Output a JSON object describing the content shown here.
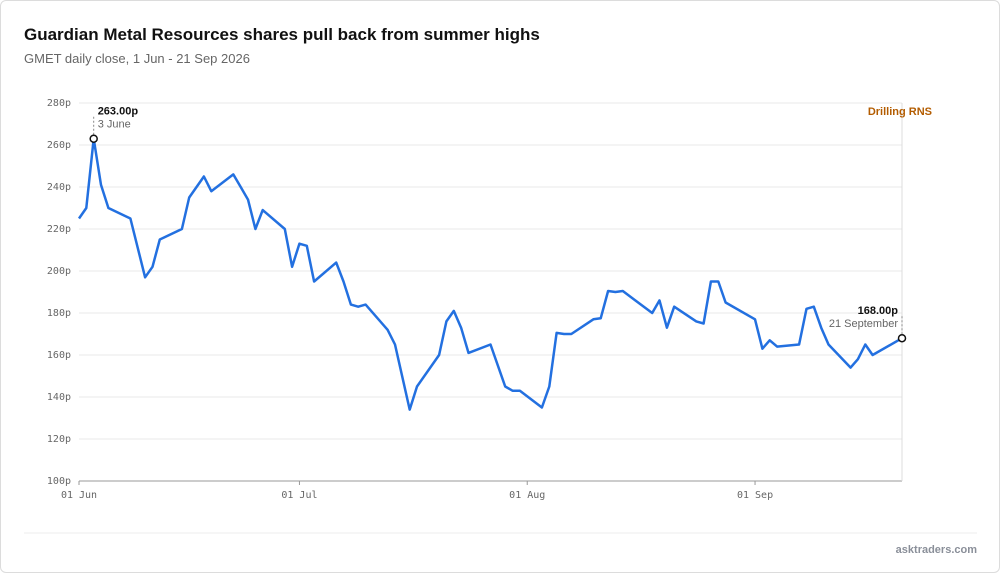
{
  "chart_data": {
    "type": "line",
    "title": "Guardian Metal Resources shares pull back from summer highs",
    "subtitle": "GMET daily close, 1 Jun - 21 Sep 2026",
    "x": [
      "2026-06-01",
      "2026-06-02",
      "2026-06-03",
      "2026-06-04",
      "2026-06-05",
      "2026-06-08",
      "2026-06-10",
      "2026-06-11",
      "2026-06-12",
      "2026-06-15",
      "2026-06-16",
      "2026-06-18",
      "2026-06-19",
      "2026-06-22",
      "2026-06-23",
      "2026-06-24",
      "2026-06-25",
      "2026-06-26",
      "2026-06-29",
      "2026-06-30",
      "2026-07-01",
      "2026-07-02",
      "2026-07-03",
      "2026-07-06",
      "2026-07-07",
      "2026-07-08",
      "2026-07-09",
      "2026-07-10",
      "2026-07-13",
      "2026-07-14",
      "2026-07-16",
      "2026-07-17",
      "2026-07-20",
      "2026-07-21",
      "2026-07-22",
      "2026-07-23",
      "2026-07-24",
      "2026-07-27",
      "2026-07-29",
      "2026-07-30",
      "2026-07-31",
      "2026-08-03",
      "2026-08-04",
      "2026-08-05",
      "2026-08-06",
      "2026-08-07",
      "2026-08-10",
      "2026-08-11",
      "2026-08-12",
      "2026-08-13",
      "2026-08-14",
      "2026-08-18",
      "2026-08-19",
      "2026-08-20",
      "2026-08-21",
      "2026-08-24",
      "2026-08-25",
      "2026-08-26",
      "2026-08-27",
      "2026-08-28",
      "2026-09-01",
      "2026-09-02",
      "2026-09-03",
      "2026-09-04",
      "2026-09-07",
      "2026-09-08",
      "2026-09-09",
      "2026-09-10",
      "2026-09-11",
      "2026-09-14",
      "2026-09-15",
      "2026-09-16",
      "2026-09-17",
      "2026-09-21"
    ],
    "series": [
      {
        "name": "GMET",
        "color": "#2370e0",
        "values": [
          225,
          230,
          263,
          241,
          230,
          225,
          197,
          202,
          215,
          220,
          235,
          245,
          238,
          246,
          240,
          234,
          220,
          229,
          220,
          202,
          213,
          212,
          195,
          204,
          195,
          184,
          183,
          184,
          172,
          165,
          134,
          145,
          160,
          176,
          181,
          173,
          161,
          165,
          145,
          143,
          143,
          135,
          145,
          170.5,
          170,
          170,
          177,
          177.5,
          190.5,
          190,
          190.5,
          180,
          186,
          173,
          183,
          176,
          175,
          195,
          195,
          185,
          177,
          163,
          167,
          164,
          165,
          182,
          183,
          173,
          165,
          154,
          158,
          165,
          160,
          168
        ]
      }
    ],
    "xlim": [
      "2026-06-01",
      "2026-09-21"
    ],
    "xticks": [
      {
        "value": "2026-06-01",
        "label": "01 Jun"
      },
      {
        "value": "2026-07-01",
        "label": "01 Jul"
      },
      {
        "value": "2026-08-01",
        "label": "01 Aug"
      },
      {
        "value": "2026-09-01",
        "label": "01 Sep"
      }
    ],
    "ylim": [
      100,
      280
    ],
    "yticks": [
      {
        "value": 100,
        "label": "100p"
      },
      {
        "value": 120,
        "label": "120p"
      },
      {
        "value": 140,
        "label": "140p"
      },
      {
        "value": 160,
        "label": "160p"
      },
      {
        "value": 180,
        "label": "180p"
      },
      {
        "value": 200,
        "label": "200p"
      },
      {
        "value": 220,
        "label": "220p"
      },
      {
        "value": 240,
        "label": "240p"
      },
      {
        "value": 260,
        "label": "260p"
      },
      {
        "value": 280,
        "label": "280p"
      }
    ],
    "grid": true,
    "annotations": [
      {
        "x": "2026-06-03",
        "value": 263,
        "value_label": "263.00p",
        "date_label": "3 June"
      },
      {
        "x": "2026-09-21",
        "value": 168,
        "value_label": "168.00p",
        "date_label": "21 September"
      }
    ],
    "event": {
      "x": "2026-09-21",
      "label": "Drilling RNS"
    },
    "source": "asktraders.com"
  }
}
